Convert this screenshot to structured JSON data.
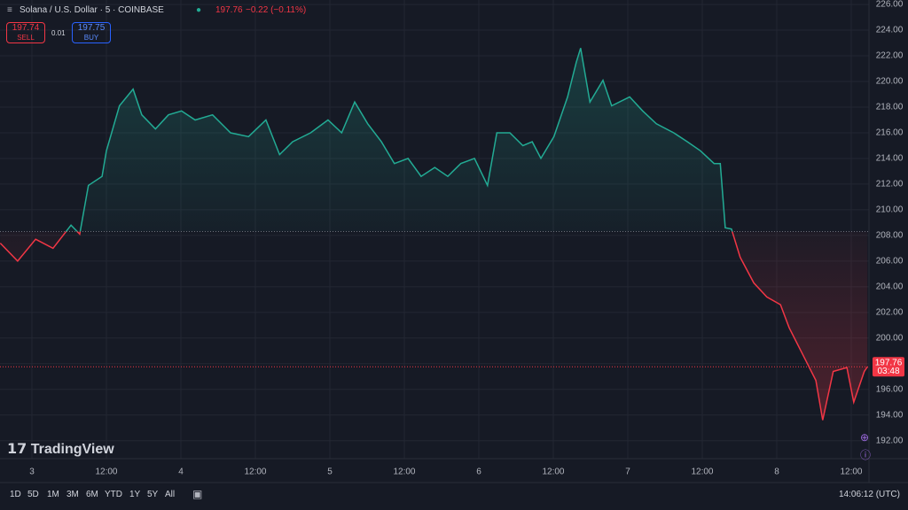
{
  "header": {
    "symbol": "Solana / U.S. Dollar · 5 · COINBASE",
    "change": "−0.22 (−0.11%)",
    "sell_price": "197.74",
    "sell_label": "SELL",
    "spread": "0.01",
    "buy_price": "197.75",
    "buy_label": "BUY"
  },
  "logo": "TradingView",
  "toolbar": {
    "ranges": [
      "1D",
      "5D",
      "1M",
      "3M",
      "6M",
      "YTD",
      "1Y",
      "5Y",
      "All"
    ],
    "clock": "14:06:12 (UTC)"
  },
  "chart_data": {
    "type": "baseline",
    "baseline": 208.3,
    "last_price": 197.76,
    "countdown": "03:48",
    "color_up": "#22ab94",
    "color_down": "#f23645",
    "x": [
      -5.1,
      -2.3,
      0.6,
      3.4,
      6.3,
      7.7,
      9.1,
      11.3,
      12,
      14.1,
      16.3,
      17.7,
      19.9,
      22,
      24.1,
      26.3,
      29.1,
      32,
      34.9,
      37.7,
      39.9,
      42,
      44.9,
      47.7,
      49.9,
      52,
      54.1,
      56.3,
      58.4,
      60.6,
      62.7,
      64.9,
      67,
      69.1,
      71.3,
      73.4,
      74.9,
      77,
      79.1,
      80.6,
      82,
      84.1,
      86.3,
      87.7,
      88.4,
      89.9,
      92,
      93.4,
      96.3,
      98.4,
      100.6,
      103.4,
      105.6,
      107.7,
      109.9,
      110.9,
      111.7,
      112.7,
      114.1,
      116.3,
      118.4,
      120.6,
      122,
      124.1,
      126.3,
      127.4,
      129.1,
      131.3,
      132.4,
      134.1,
      134.6
    ],
    "values": [
      207.4,
      206.0,
      207.7,
      207.0,
      208.8,
      208.1,
      211.9,
      212.6,
      214.6,
      218.1,
      219.4,
      217.4,
      216.3,
      217.4,
      217.7,
      217.0,
      217.4,
      216.0,
      215.7,
      217.0,
      214.3,
      215.3,
      216.0,
      217.0,
      216.0,
      218.4,
      216.7,
      215.3,
      213.6,
      214.0,
      212.6,
      213.3,
      212.6,
      213.6,
      214.0,
      211.9,
      216.0,
      216.0,
      215.0,
      215.3,
      214.0,
      215.7,
      218.8,
      221.5,
      222.6,
      218.4,
      220.1,
      218.1,
      218.8,
      217.7,
      216.7,
      216.0,
      215.3,
      214.6,
      213.6,
      213.6,
      208.6,
      208.5,
      206.3,
      204.3,
      203.2,
      202.6,
      200.8,
      198.8,
      196.7,
      193.6,
      197.4,
      197.7,
      195.0,
      197.4,
      197.76
    ],
    "xlim": [
      -5.14,
      134.86
    ],
    "xticks": [
      {
        "value": 0,
        "label": "3"
      },
      {
        "value": 12,
        "label": "12:00"
      },
      {
        "value": 24,
        "label": "4"
      },
      {
        "value": 36,
        "label": "12:00"
      },
      {
        "value": 48,
        "label": "5"
      },
      {
        "value": 60,
        "label": "12:00"
      },
      {
        "value": 72,
        "label": "6"
      },
      {
        "value": 84,
        "label": "12:00"
      },
      {
        "value": 96,
        "label": "7"
      },
      {
        "value": 108,
        "label": "12:00"
      },
      {
        "value": 120,
        "label": "8"
      },
      {
        "value": 132,
        "label": "12:00"
      }
    ],
    "ylim": [
      190.6,
      226.35
    ],
    "yticks": [
      {
        "value": 192,
        "label": "192.00"
      },
      {
        "value": 194,
        "label": "194.00"
      },
      {
        "value": 196,
        "label": "196.00"
      },
      {
        "value": 198,
        "label": "198.00"
      },
      {
        "value": 200,
        "label": "200.00"
      },
      {
        "value": 202,
        "label": "202.00"
      },
      {
        "value": 204,
        "label": "204.00"
      },
      {
        "value": 206,
        "label": "206.00"
      },
      {
        "value": 208,
        "label": "208.00"
      },
      {
        "value": 210,
        "label": "210.00"
      },
      {
        "value": 212,
        "label": "212.00"
      },
      {
        "value": 214,
        "label": "214.00"
      },
      {
        "value": 216,
        "label": "216.00"
      },
      {
        "value": 218,
        "label": "218.00"
      },
      {
        "value": 220,
        "label": "220.00"
      },
      {
        "value": 222,
        "label": "222.00"
      },
      {
        "value": 224,
        "label": "224.00"
      },
      {
        "value": 226,
        "label": "226.00"
      }
    ],
    "grid": true
  }
}
